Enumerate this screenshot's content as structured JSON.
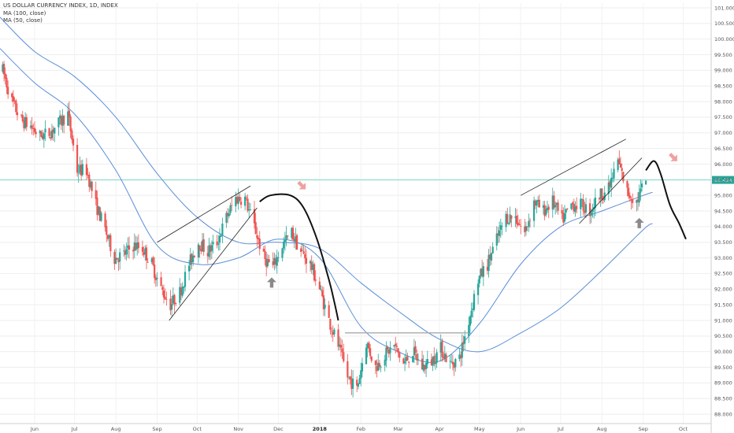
{
  "legend": {
    "title": "US DOLLAR CURRENCY INDEX, 1D, INDEX",
    "ma100": "MA (100, close)",
    "ma50": "MA (50, close)"
  },
  "current_price": "95.494",
  "colors": {
    "up": "#26a69a",
    "down": "#ef5350",
    "ma": "#5b8fd6",
    "price_line": "#7fd6c8",
    "pattern": "#222222",
    "arrow_up": "#8a8a8a",
    "arrow_down": "#f0a0a0"
  },
  "chart_data": {
    "type": "candlestick",
    "ylim": [
      87.7,
      101.15
    ],
    "y_ticks": [
      "88.000",
      "88.500",
      "89.000",
      "89.500",
      "90.000",
      "90.500",
      "91.000",
      "91.500",
      "92.000",
      "92.500",
      "93.000",
      "93.500",
      "94.000",
      "94.500",
      "95.000",
      "95.500",
      "96.000",
      "96.500",
      "97.000",
      "97.500",
      "98.000",
      "98.500",
      "99.000",
      "99.500",
      "100.000",
      "100.500",
      "101.000"
    ],
    "x_ticks": [
      {
        "label": "Jun",
        "date": "2017-06-01"
      },
      {
        "label": "Jul",
        "date": "2017-07-01"
      },
      {
        "label": "Aug",
        "date": "2017-08-01"
      },
      {
        "label": "Sep",
        "date": "2017-09-01"
      },
      {
        "label": "Oct",
        "date": "2017-10-01"
      },
      {
        "label": "Nov",
        "date": "2017-11-01"
      },
      {
        "label": "Dec",
        "date": "2017-12-01"
      },
      {
        "label": "2018",
        "date": "2018-01-01",
        "bold": true
      },
      {
        "label": "Feb",
        "date": "2018-02-01"
      },
      {
        "label": "Mar",
        "date": "2018-03-01"
      },
      {
        "label": "Apr",
        "date": "2018-04-01"
      },
      {
        "label": "May",
        "date": "2018-05-01"
      },
      {
        "label": "Jun",
        "date": "2018-06-01"
      },
      {
        "label": "Jul",
        "date": "2018-07-01"
      },
      {
        "label": "Aug",
        "date": "2018-08-01"
      },
      {
        "label": "Sep",
        "date": "2018-09-01"
      },
      {
        "label": "Oct",
        "date": "2018-10-01"
      }
    ],
    "xlim": [
      "2017-05-06",
      "2018-10-22"
    ],
    "price_path": [
      [
        "2017-05-08",
        99.0
      ],
      [
        "2017-05-15",
        98.0
      ],
      [
        "2017-05-22",
        97.4
      ],
      [
        "2017-05-29",
        97.2
      ],
      [
        "2017-06-05",
        96.9
      ],
      [
        "2017-06-12",
        97.0
      ],
      [
        "2017-06-19",
        97.3
      ],
      [
        "2017-06-26",
        97.6
      ],
      [
        "2017-07-03",
        95.8
      ],
      [
        "2017-07-10",
        95.8
      ],
      [
        "2017-07-17",
        94.7
      ],
      [
        "2017-07-24",
        93.9
      ],
      [
        "2017-07-31",
        93.0
      ],
      [
        "2017-08-07",
        93.1
      ],
      [
        "2017-08-14",
        93.4
      ],
      [
        "2017-08-21",
        93.3
      ],
      [
        "2017-08-28",
        92.8
      ],
      [
        "2017-09-04",
        92.0
      ],
      [
        "2017-09-11",
        91.5
      ],
      [
        "2017-09-18",
        91.9
      ],
      [
        "2017-09-25",
        92.8
      ],
      [
        "2017-10-02",
        93.5
      ],
      [
        "2017-10-09",
        93.2
      ],
      [
        "2017-10-16",
        93.5
      ],
      [
        "2017-10-23",
        94.3
      ],
      [
        "2017-10-30",
        94.9
      ],
      [
        "2017-11-06",
        94.9
      ],
      [
        "2017-11-13",
        94.0
      ],
      [
        "2017-11-20",
        93.0
      ],
      [
        "2017-11-27",
        92.7
      ],
      [
        "2017-12-04",
        93.4
      ],
      [
        "2017-12-11",
        93.8
      ],
      [
        "2017-12-18",
        93.2
      ],
      [
        "2017-12-25",
        92.8
      ],
      [
        "2018-01-01",
        92.0
      ],
      [
        "2018-01-08",
        91.0
      ],
      [
        "2018-01-15",
        90.2
      ],
      [
        "2018-01-22",
        89.2
      ],
      [
        "2018-01-29",
        88.8
      ],
      [
        "2018-02-05",
        90.3
      ],
      [
        "2018-02-12",
        89.5
      ],
      [
        "2018-02-19",
        89.9
      ],
      [
        "2018-02-26",
        90.2
      ],
      [
        "2018-03-05",
        89.6
      ],
      [
        "2018-03-12",
        90.0
      ],
      [
        "2018-03-19",
        89.5
      ],
      [
        "2018-03-26",
        89.7
      ],
      [
        "2018-04-02",
        90.1
      ],
      [
        "2018-04-09",
        89.6
      ],
      [
        "2018-04-16",
        89.8
      ],
      [
        "2018-04-23",
        91.0
      ],
      [
        "2018-04-30",
        92.3
      ],
      [
        "2018-05-07",
        92.8
      ],
      [
        "2018-05-14",
        93.6
      ],
      [
        "2018-05-21",
        94.3
      ],
      [
        "2018-05-28",
        94.3
      ],
      [
        "2018-06-04",
        93.8
      ],
      [
        "2018-06-11",
        94.8
      ],
      [
        "2018-06-18",
        94.5
      ],
      [
        "2018-06-25",
        94.8
      ],
      [
        "2018-07-02",
        94.2
      ],
      [
        "2018-07-09",
        94.7
      ],
      [
        "2018-07-16",
        94.7
      ],
      [
        "2018-07-23",
        94.5
      ],
      [
        "2018-07-30",
        95.0
      ],
      [
        "2018-08-06",
        95.2
      ],
      [
        "2018-08-13",
        96.1
      ],
      [
        "2018-08-20",
        95.1
      ],
      [
        "2018-08-27",
        94.8
      ],
      [
        "2018-09-03",
        95.5
      ]
    ],
    "ma100": [
      [
        "2017-05-06",
        100.7
      ],
      [
        "2017-06-01",
        99.6
      ],
      [
        "2017-07-01",
        98.8
      ],
      [
        "2017-08-01",
        97.5
      ],
      [
        "2017-09-01",
        95.7
      ],
      [
        "2017-10-01",
        94.3
      ],
      [
        "2017-11-01",
        93.5
      ],
      [
        "2017-12-01",
        93.5
      ],
      [
        "2018-01-01",
        93.3
      ],
      [
        "2018-02-01",
        92.2
      ],
      [
        "2018-03-01",
        91.3
      ],
      [
        "2018-04-01",
        90.4
      ],
      [
        "2018-05-01",
        90.0
      ],
      [
        "2018-06-01",
        90.6
      ],
      [
        "2018-07-01",
        91.4
      ],
      [
        "2018-08-01",
        92.6
      ],
      [
        "2018-09-01",
        93.9
      ],
      [
        "2018-09-08",
        94.1
      ]
    ],
    "ma50": [
      [
        "2017-05-06",
        99.7
      ],
      [
        "2017-06-01",
        98.6
      ],
      [
        "2017-07-01",
        97.6
      ],
      [
        "2017-08-01",
        95.8
      ],
      [
        "2017-09-01",
        93.4
      ],
      [
        "2017-10-01",
        92.8
      ],
      [
        "2017-11-01",
        93.0
      ],
      [
        "2017-12-01",
        93.6
      ],
      [
        "2018-01-01",
        93.0
      ],
      [
        "2018-02-01",
        90.8
      ],
      [
        "2018-03-01",
        90.0
      ],
      [
        "2018-04-01",
        89.7
      ],
      [
        "2018-05-01",
        90.9
      ],
      [
        "2018-06-01",
        92.8
      ],
      [
        "2018-07-01",
        94.0
      ],
      [
        "2018-08-01",
        94.5
      ],
      [
        "2018-09-01",
        95.0
      ],
      [
        "2018-09-08",
        95.1
      ]
    ],
    "current_price": 95.494,
    "drawings": {
      "channel_upper": [
        [
          "2017-09-01",
          93.5
        ],
        [
          "2017-11-10",
          95.3
        ]
      ],
      "channel_lower": [
        [
          "2017-09-10",
          91.0
        ],
        [
          "2017-11-15",
          94.6
        ]
      ],
      "support_line": [
        [
          "2018-01-20",
          90.6
        ],
        [
          "2018-04-23",
          90.6
        ]
      ],
      "wedge_upper": [
        [
          "2018-06-01",
          95.0
        ],
        [
          "2018-08-19",
          96.8
        ]
      ],
      "wedge_lower": [
        [
          "2018-07-15",
          94.1
        ],
        [
          "2018-08-31",
          96.2
        ]
      ],
      "projection_2017": [
        [
          "2017-11-17",
          94.8
        ],
        [
          "2017-11-25",
          95.0
        ],
        [
          "2017-12-10",
          95.0
        ],
        [
          "2017-12-20",
          94.6
        ],
        [
          "2017-12-30",
          93.6
        ],
        [
          "2018-01-08",
          92.3
        ],
        [
          "2018-01-12",
          91.6
        ],
        [
          "2018-01-15",
          91.0
        ]
      ],
      "projection_2018": [
        [
          "2018-09-03",
          95.8
        ],
        [
          "2018-09-09",
          96.1
        ],
        [
          "2018-09-14",
          95.7
        ],
        [
          "2018-09-21",
          94.7
        ],
        [
          "2018-09-28",
          94.1
        ],
        [
          "2018-10-03",
          93.6
        ]
      ]
    },
    "markers": [
      {
        "type": "arrow-up",
        "date": "2017-11-26",
        "value": 92.2
      },
      {
        "type": "arrow-down",
        "date": "2017-12-19",
        "value": 95.3
      },
      {
        "type": "arrow-up",
        "date": "2018-08-29",
        "value": 94.1
      },
      {
        "type": "arrow-down",
        "date": "2018-09-24",
        "value": 96.2
      }
    ]
  }
}
